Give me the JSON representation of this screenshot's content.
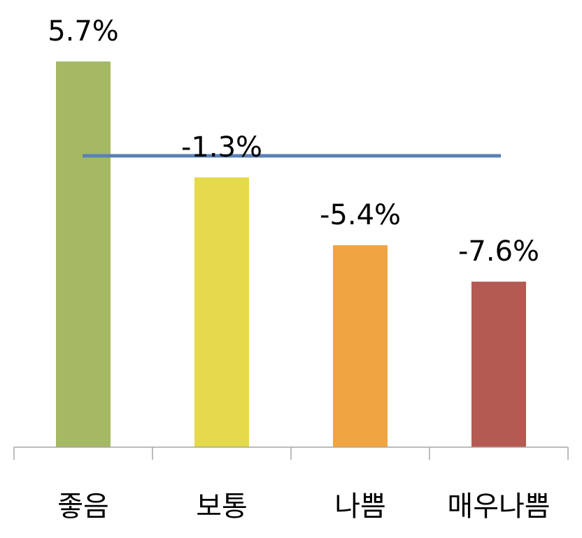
{
  "chart_data": {
    "type": "bar",
    "title": "",
    "xlabel": "",
    "ylabel": "",
    "categories": [
      "좋음",
      "보통",
      "나쁨",
      "매우나쁨"
    ],
    "values": [
      5.7,
      -1.3,
      -5.4,
      -7.6
    ],
    "data_labels": [
      "5.7%",
      "-1.3%",
      "-5.4%",
      "-7.6%"
    ],
    "unit": "%",
    "ylim": [
      -17.6,
      5.7
    ],
    "reference_line": {
      "value": 0
    },
    "colors": [
      "#a5b964",
      "#e5da4b",
      "#f0a540",
      "#b45a52"
    ],
    "reference_line_color": "#5b80b8",
    "grid": false,
    "legend": "none"
  }
}
